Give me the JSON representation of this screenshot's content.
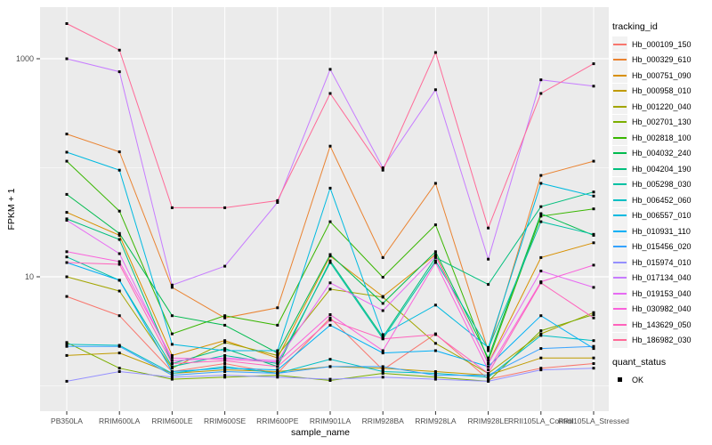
{
  "figure": {
    "y_axis_label": "FPKM + 1",
    "x_axis_label": "sample_name",
    "y_ticks": [
      "1000",
      "10"
    ],
    "panel_background": "#EBEBEB",
    "gridline_color": "#FFFFFF",
    "tick_text_color": "#4D4D4D"
  },
  "legend": {
    "tracking_title": "tracking_id",
    "quant_title": "quant_status",
    "quant_items": [
      {
        "label": "OK",
        "marker": "black-square"
      }
    ]
  },
  "chart_data": {
    "type": "line",
    "title": "",
    "xlabel": "sample_name",
    "ylabel": "FPKM + 1",
    "y_scale": "log10",
    "ylim": [
      1,
      2500
    ],
    "y_major_ticks": [
      10,
      1000
    ],
    "y_minor_gridlines": [
      1,
      100
    ],
    "point_marker": "filled-black-square",
    "legend_position": "right",
    "grid": true,
    "x_categories": [
      "PB350LA",
      "RRIM600LA",
      "RRIM600LE",
      "RRIM600SE",
      "RRIM600PE",
      "RRIM901LA",
      "RRIM928BA",
      "RRIM928LA",
      "RRIM928LE",
      "RRII105LA_Control",
      "RRII105LA_Stressed"
    ],
    "series": [
      {
        "name": "Hb_000109_150",
        "color": "#F8766D",
        "values": [
          6.6,
          4.4,
          1.35,
          1.6,
          1.3,
          4.2,
          1.4,
          3,
          1.15,
          1.45,
          1.6
        ]
      },
      {
        "name": "Hb_000329_610",
        "color": "#EA8331",
        "values": [
          204,
          140,
          8,
          4.2,
          5.2,
          158,
          15,
          72,
          2.1,
          85,
          115
        ]
      },
      {
        "name": "Hb_000751_090",
        "color": "#D89000",
        "values": [
          39,
          24,
          1.9,
          2.6,
          1.8,
          15.5,
          6.6,
          16,
          1.6,
          15,
          20.5
        ]
      },
      {
        "name": "Hb_000958_010",
        "color": "#C09B00",
        "values": [
          1.9,
          2,
          1.3,
          1.4,
          1.35,
          1.5,
          1.45,
          1.35,
          1.25,
          1.8,
          1.8
        ]
      },
      {
        "name": "Hb_001220_040",
        "color": "#A3A500",
        "values": [
          10,
          7.4,
          1.45,
          2.5,
          1.9,
          7.7,
          6.5,
          2.45,
          1.3,
          3,
          4.7
        ]
      },
      {
        "name": "Hb_002701_130",
        "color": "#7CAE00",
        "values": [
          2.5,
          1.45,
          1.15,
          1.2,
          1.25,
          1.12,
          1.3,
          1.2,
          1.1,
          3.2,
          4.5
        ]
      },
      {
        "name": "Hb_002818_100",
        "color": "#39B600",
        "values": [
          115,
          40,
          3,
          4.4,
          3.6,
          32,
          9.9,
          30,
          1.7,
          36,
          42
        ]
      },
      {
        "name": "Hb_004032_240",
        "color": "#00BB4E",
        "values": [
          57,
          25,
          4.4,
          3.6,
          2,
          16,
          5.7,
          17,
          1.8,
          38,
          24
        ]
      },
      {
        "name": "Hb_004204_190",
        "color": "#00BF7D",
        "values": [
          34,
          22,
          1.6,
          2.2,
          1.5,
          14,
          2.8,
          15,
          8.5,
          44,
          60
        ]
      },
      {
        "name": "Hb_005298_030",
        "color": "#00C1A3",
        "values": [
          15.2,
          9.3,
          1.5,
          1.9,
          1.6,
          13.5,
          2.7,
          14,
          2.2,
          32,
          24.5
        ]
      },
      {
        "name": "Hb_006452_060",
        "color": "#00BFC4",
        "values": [
          2.4,
          2.35,
          1.3,
          1.5,
          1.3,
          1.75,
          1.35,
          1.3,
          1.2,
          2.9,
          2.6
        ]
      },
      {
        "name": "Hb_006557_010",
        "color": "#00BAE0",
        "values": [
          139,
          95,
          2.4,
          2.1,
          2.1,
          65,
          2.95,
          5.5,
          2.25,
          72,
          55
        ]
      },
      {
        "name": "Hb_010931_110",
        "color": "#00B0F6",
        "values": [
          13.5,
          9.3,
          1.35,
          1.45,
          1.4,
          3.6,
          2,
          2.1,
          1.5,
          4.4,
          2.2
        ]
      },
      {
        "name": "Hb_015456_020",
        "color": "#35A2FF",
        "values": [
          2.3,
          2.3,
          1.25,
          1.35,
          1.3,
          1.5,
          1.5,
          1.25,
          1.25,
          2.2,
          2.3
        ]
      },
      {
        "name": "Hb_015974_010",
        "color": "#9590FF",
        "values": [
          1.1,
          1.35,
          1.2,
          1.25,
          1.2,
          1.15,
          1.2,
          1.15,
          1.1,
          1.4,
          1.45
        ]
      },
      {
        "name": "Hb_017134_040",
        "color": "#C77CFF",
        "values": [
          1000,
          760,
          8.4,
          12.5,
          48,
          800,
          100,
          520,
          14.5,
          640,
          560
        ]
      },
      {
        "name": "Hb_019153_040",
        "color": "#E76BF3",
        "values": [
          33,
          16.3,
          1.7,
          1.8,
          1.7,
          8.8,
          4.9,
          15.5,
          1.6,
          11.3,
          8
        ]
      },
      {
        "name": "Hb_030982_040",
        "color": "#FA62DB",
        "values": [
          17,
          13.8,
          1.8,
          1.75,
          1.65,
          4.5,
          2.1,
          13.5,
          1.4,
          9,
          12.8
        ]
      },
      {
        "name": "Hb_143629_050",
        "color": "#FF62BC",
        "values": [
          13.5,
          13,
          1.6,
          1.7,
          1.5,
          4,
          2.7,
          2.95,
          1.3,
          8.8,
          4.2
        ]
      },
      {
        "name": "Hb_186982_030",
        "color": "#FF6A98",
        "values": [
          2100,
          1200,
          43,
          43,
          50,
          480,
          95,
          1140,
          28,
          480,
          900
        ]
      }
    ]
  }
}
